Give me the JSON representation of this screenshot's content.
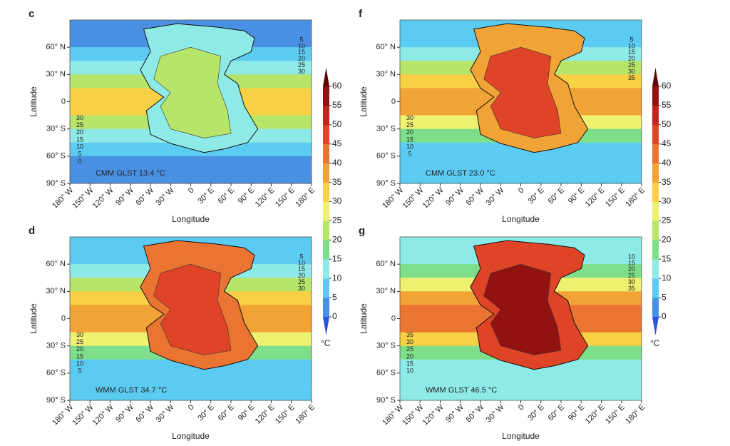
{
  "figure": {
    "latitude_label": "Latitude",
    "longitude_label": "Longitude",
    "ylim": [
      -90,
      90
    ],
    "xlim": [
      -180,
      180
    ],
    "yticks": [
      {
        "value": 60,
        "label": "60° N"
      },
      {
        "value": 30,
        "label": "30° N"
      },
      0,
      {
        "value": -30,
        "label": "30° S"
      },
      {
        "value": -60,
        "label": "60° S"
      },
      {
        "value": -90,
        "label": "90° S"
      }
    ],
    "xticks": [
      {
        "value": -180,
        "label": "180° W"
      },
      {
        "value": -150,
        "label": "150° W"
      },
      {
        "value": -120,
        "label": "120° W"
      },
      {
        "value": -90,
        "label": "90° W"
      },
      {
        "value": -60,
        "label": "60° W"
      },
      {
        "value": -30,
        "label": "30° W"
      },
      0,
      {
        "value": 30,
        "label": "30° E"
      },
      {
        "value": 60,
        "label": "60° E"
      },
      {
        "value": 90,
        "label": "90° E"
      },
      {
        "value": 120,
        "label": "120° E"
      },
      {
        "value": 150,
        "label": "150° E"
      },
      {
        "value": 180,
        "label": "180° E"
      }
    ],
    "colorbar": {
      "ticks": [
        0,
        5,
        10,
        15,
        20,
        25,
        30,
        35,
        40,
        45,
        50,
        55,
        60
      ],
      "unit": "°C",
      "colors": [
        "#4a90e2",
        "#5ccbf2",
        "#8eeae6",
        "#7ddf8a",
        "#b7e56a",
        "#eef070",
        "#f7d044",
        "#f2a336",
        "#ea7432",
        "#e04426",
        "#c2241e",
        "#921212"
      ],
      "under_color": "#2a52e0",
      "over_color": "#5e0606"
    },
    "panels": [
      {
        "letter": "c",
        "annotation": "CMM GLST 13.4 °C",
        "zonal": [
          0,
          0,
          5,
          12,
          22,
          30,
          30,
          22,
          12,
          5,
          0,
          0
        ],
        "land": 22,
        "contour_labels_east": [
          5,
          10,
          15,
          20,
          25,
          30
        ],
        "contour_labels_west": [
          30,
          25,
          20,
          15,
          10,
          5,
          0
        ]
      },
      {
        "letter": "f",
        "annotation": "CMM GLST 23.0 °C",
        "zonal": [
          5,
          8,
          12,
          20,
          30,
          38,
          38,
          28,
          15,
          8,
          5,
          5
        ],
        "land": 45,
        "contour_labels_east": [
          5,
          10,
          15,
          20,
          25,
          30,
          35
        ],
        "contour_labels_west": [
          30,
          25,
          20,
          15,
          10,
          5
        ]
      },
      {
        "letter": "d",
        "annotation": "WMM GLST 34.7 °C",
        "zonal": [
          5,
          8,
          12,
          20,
          30,
          35,
          35,
          28,
          15,
          8,
          5,
          5
        ],
        "land": 48,
        "contour_labels_east": [
          5,
          10,
          15,
          20,
          25,
          30
        ],
        "contour_labels_west": [
          30,
          25,
          20,
          15,
          10,
          5
        ]
      },
      {
        "letter": "g",
        "annotation": "WMM GLST 46.5 °C",
        "zonal": [
          10,
          12,
          18,
          28,
          35,
          42,
          42,
          32,
          18,
          12,
          10,
          10
        ],
        "land": 55,
        "contour_labels_east": [
          10,
          15,
          20,
          25,
          30,
          35
        ],
        "contour_labels_west": [
          35,
          30,
          25,
          20,
          15,
          10
        ]
      }
    ]
  }
}
